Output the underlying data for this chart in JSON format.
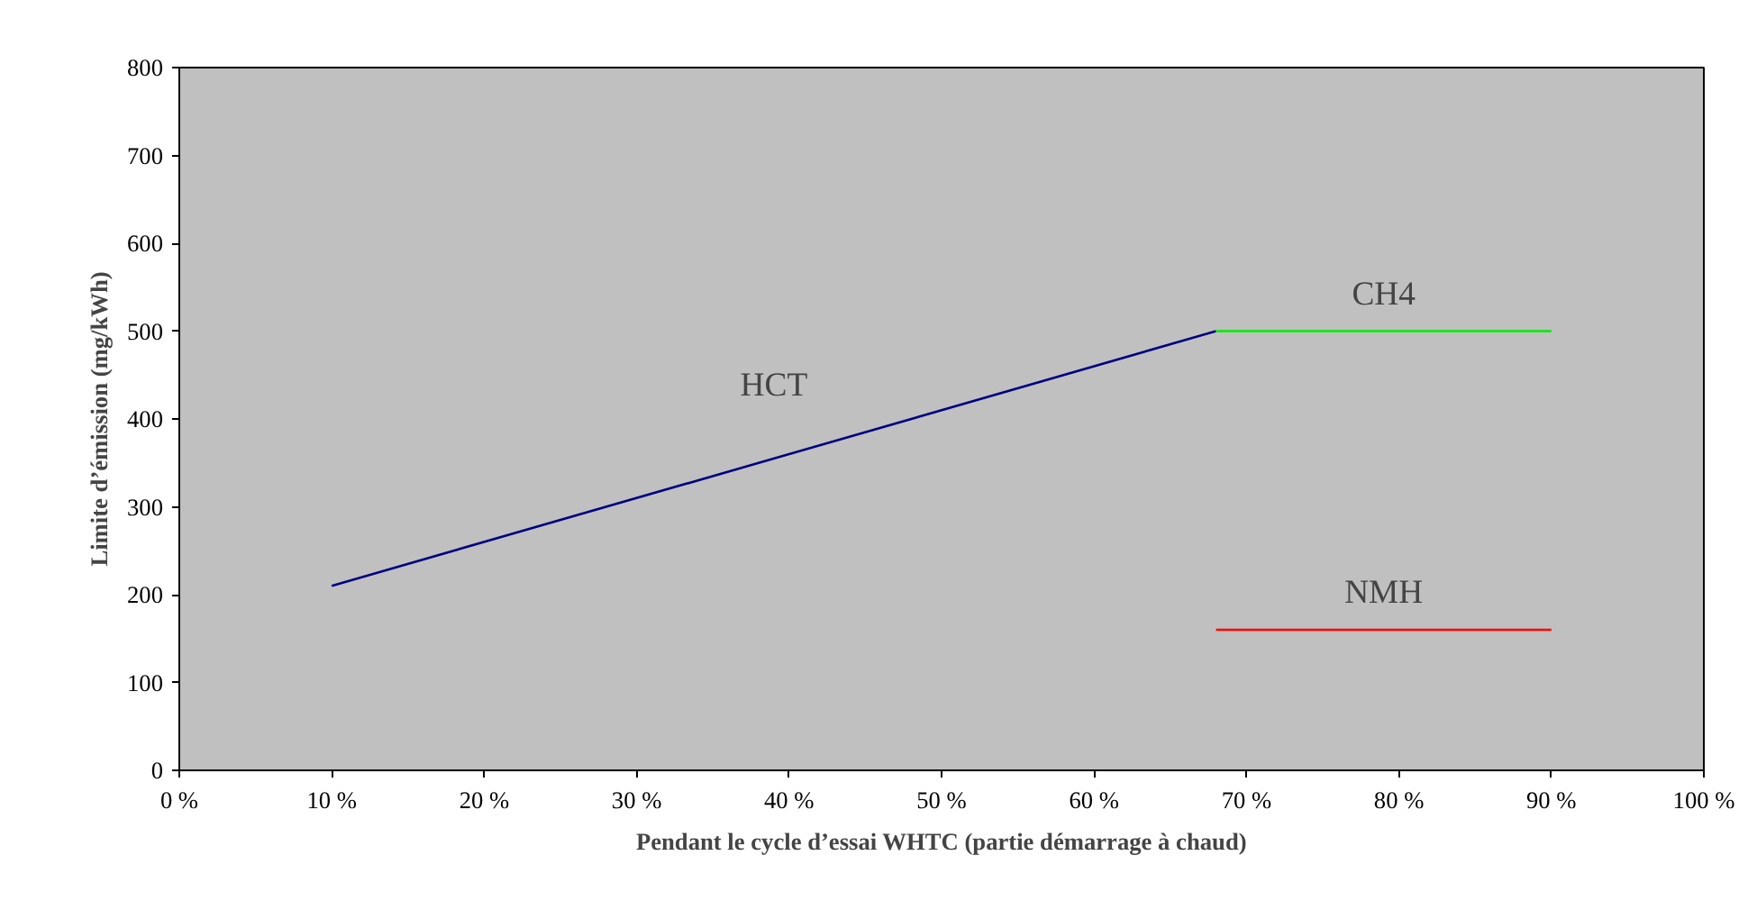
{
  "chart_data": {
    "type": "line",
    "xlabel": "Pendant le cycle d’essai WHTC (partie démarrage à chaud)",
    "ylabel": "Limite d’émission (mg/kWh)",
    "xlim": [
      0,
      100
    ],
    "ylim": [
      0,
      800
    ],
    "xticks": [
      {
        "value": 0,
        "label": "0 %"
      },
      {
        "value": 10,
        "label": "10 %"
      },
      {
        "value": 20,
        "label": "20 %"
      },
      {
        "value": 30,
        "label": "30 %"
      },
      {
        "value": 40,
        "label": "40 %"
      },
      {
        "value": 50,
        "label": "50 %"
      },
      {
        "value": 60,
        "label": "60 %"
      },
      {
        "value": 70,
        "label": "70 %"
      },
      {
        "value": 80,
        "label": "80 %"
      },
      {
        "value": 90,
        "label": "90 %"
      },
      {
        "value": 100,
        "label": "100 %"
      }
    ],
    "yticks": [
      0,
      100,
      200,
      300,
      400,
      500,
      600,
      700,
      800
    ],
    "grid": false,
    "marker": "none",
    "line_style": "solid",
    "series": [
      {
        "name": "HCT",
        "color": "#000080",
        "x": [
          10,
          68
        ],
        "values": [
          210,
          500
        ]
      },
      {
        "name": "CH4",
        "color": "#00ee00",
        "x": [
          68,
          90
        ],
        "values": [
          500,
          500
        ]
      },
      {
        "name": "NMH",
        "color": "#ff0000",
        "x": [
          68,
          90
        ],
        "values": [
          160,
          160
        ]
      }
    ]
  }
}
